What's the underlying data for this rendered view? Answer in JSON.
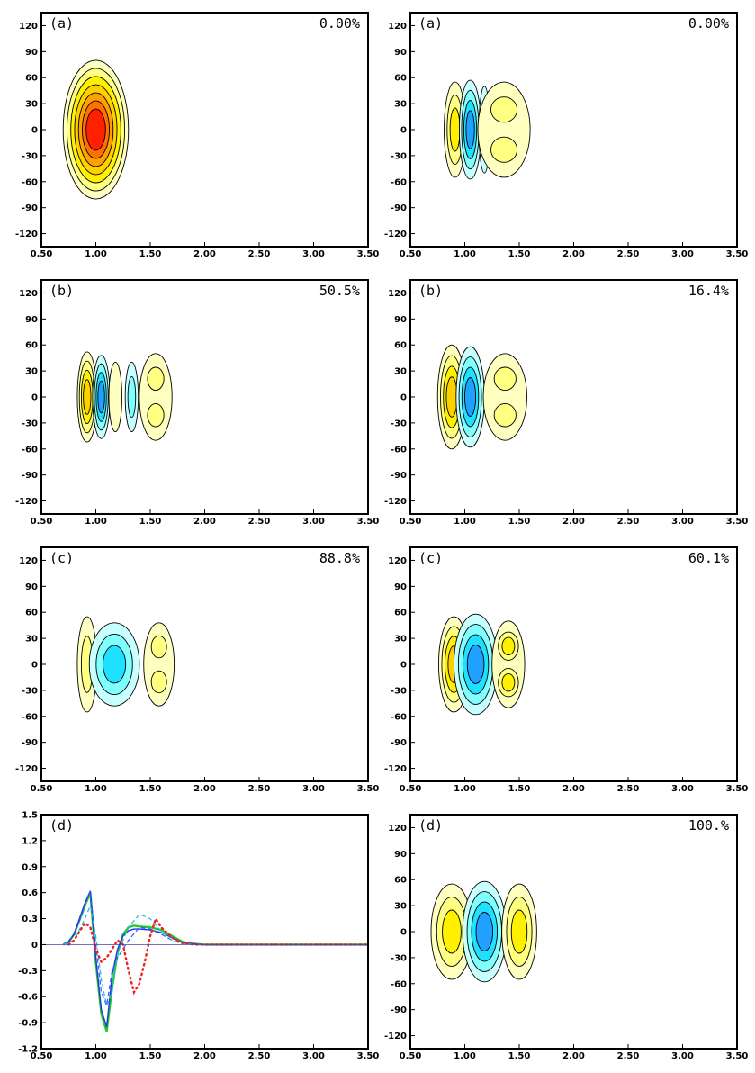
{
  "chart_data": [
    {
      "type": "contour",
      "panel_label": "(a)",
      "percent_label": "0.00%",
      "xlim": [
        0.5,
        3.5
      ],
      "ylim": [
        -135,
        135
      ],
      "x_ticks": [
        "0.50",
        "1.00",
        "1.50",
        "2.00",
        "2.50",
        "3.00",
        "3.50"
      ],
      "y_ticks": [
        "120",
        "90",
        "60",
        "30",
        "0",
        "-30",
        "-60",
        "-90",
        "-120"
      ],
      "lobes": [
        {
          "x": 1.0,
          "y": 0,
          "rx": 0.3,
          "ry": 80,
          "sign": 1,
          "levels": 7
        }
      ]
    },
    {
      "type": "contour",
      "panel_label": "(a)",
      "percent_label": "0.00%",
      "xlim": [
        0.5,
        3.5
      ],
      "ylim": [
        -135,
        135
      ],
      "x_ticks": [
        "0.50",
        "1.00",
        "1.50",
        "2.00",
        "2.50",
        "3.00",
        "3.50"
      ],
      "y_ticks": [
        "120",
        "90",
        "60",
        "30",
        "0",
        "-30",
        "-60",
        "-90",
        "-120"
      ],
      "lobes": [
        {
          "x": 0.91,
          "y": 0,
          "rx": 0.1,
          "ry": 55,
          "sign": 1,
          "levels": 3
        },
        {
          "x": 1.05,
          "y": 0,
          "rx": 0.1,
          "ry": 57,
          "sign": -1,
          "levels": 4
        },
        {
          "x": 1.18,
          "y": 0,
          "rx": 0.05,
          "ry": 50,
          "sign": -1,
          "levels": 1
        },
        {
          "x": 1.36,
          "y": 0,
          "rx": 0.24,
          "ry": 55,
          "sign": 1,
          "levels": 2,
          "split": true
        }
      ]
    },
    {
      "type": "contour",
      "panel_label": "(b)",
      "percent_label": "50.5%",
      "xlim": [
        0.5,
        3.5
      ],
      "ylim": [
        -135,
        135
      ],
      "x_ticks": [
        "0.50",
        "1.00",
        "1.50",
        "2.00",
        "2.50",
        "3.00",
        "3.50"
      ],
      "y_ticks": [
        "120",
        "90",
        "60",
        "30",
        "0",
        "-30",
        "-60",
        "-90",
        "-120"
      ],
      "lobes": [
        {
          "x": 0.92,
          "y": 0,
          "rx": 0.09,
          "ry": 52,
          "sign": 1,
          "levels": 4
        },
        {
          "x": 1.05,
          "y": 0,
          "rx": 0.08,
          "ry": 48,
          "sign": -1,
          "levels": 4
        },
        {
          "x": 1.18,
          "y": 0,
          "rx": 0.06,
          "ry": 40,
          "sign": 1,
          "levels": 1
        },
        {
          "x": 1.33,
          "y": 0,
          "rx": 0.06,
          "ry": 40,
          "sign": -1,
          "levels": 2
        },
        {
          "x": 1.55,
          "y": 0,
          "rx": 0.15,
          "ry": 50,
          "sign": 1,
          "levels": 2,
          "split": true
        }
      ]
    },
    {
      "type": "contour",
      "panel_label": "(b)",
      "percent_label": "16.4%",
      "xlim": [
        0.5,
        3.5
      ],
      "ylim": [
        -135,
        135
      ],
      "x_ticks": [
        "0.50",
        "1.00",
        "1.50",
        "2.00",
        "2.50",
        "3.00",
        "3.50"
      ],
      "y_ticks": [
        "120",
        "90",
        "60",
        "30",
        "0",
        "-30",
        "-60",
        "-90",
        "-120"
      ],
      "lobes": [
        {
          "x": 0.88,
          "y": 0,
          "rx": 0.13,
          "ry": 60,
          "sign": 1,
          "levels": 4
        },
        {
          "x": 1.05,
          "y": 0,
          "rx": 0.13,
          "ry": 58,
          "sign": -1,
          "levels": 4
        },
        {
          "x": 1.37,
          "y": 0,
          "rx": 0.2,
          "ry": 50,
          "sign": 1,
          "levels": 2,
          "split": true
        }
      ]
    },
    {
      "type": "contour",
      "panel_label": "(c)",
      "percent_label": "88.8%",
      "xlim": [
        0.5,
        3.5
      ],
      "ylim": [
        -135,
        135
      ],
      "x_ticks": [
        "0.50",
        "1.00",
        "1.50",
        "2.00",
        "2.50",
        "3.00",
        "3.50"
      ],
      "y_ticks": [
        "120",
        "90",
        "60",
        "30",
        "0",
        "-30",
        "-60",
        "-90",
        "-120"
      ],
      "lobes": [
        {
          "x": 0.92,
          "y": 0,
          "rx": 0.09,
          "ry": 55,
          "sign": 1,
          "levels": 2
        },
        {
          "x": 1.17,
          "y": 0,
          "rx": 0.23,
          "ry": 48,
          "sign": -1,
          "levels": 3
        },
        {
          "x": 1.58,
          "y": 0,
          "rx": 0.14,
          "ry": 48,
          "sign": 1,
          "levels": 2,
          "split": true
        }
      ]
    },
    {
      "type": "contour",
      "panel_label": "(c)",
      "percent_label": "60.1%",
      "xlim": [
        0.5,
        3.5
      ],
      "ylim": [
        -135,
        135
      ],
      "x_ticks": [
        "0.50",
        "1.00",
        "1.50",
        "2.00",
        "2.50",
        "3.00",
        "3.50"
      ],
      "y_ticks": [
        "120",
        "90",
        "60",
        "30",
        "0",
        "-30",
        "-60",
        "-90",
        "-120"
      ],
      "lobes": [
        {
          "x": 0.9,
          "y": 0,
          "rx": 0.14,
          "ry": 55,
          "sign": 1,
          "levels": 4
        },
        {
          "x": 1.1,
          "y": 0,
          "rx": 0.2,
          "ry": 58,
          "sign": -1,
          "levels": 4
        },
        {
          "x": 1.4,
          "y": 0,
          "rx": 0.15,
          "ry": 50,
          "sign": 1,
          "levels": 3,
          "split": true
        }
      ]
    },
    {
      "type": "line",
      "panel_label": "(d)",
      "xlim": [
        0.5,
        3.5
      ],
      "ylim": [
        -1.2,
        1.5
      ],
      "x_ticks": [
        "0.50",
        "1.00",
        "1.50",
        "2.00",
        "2.50",
        "3.00",
        "3.50"
      ],
      "y_ticks": [
        "1.5",
        "1.2",
        "0.9",
        "0.6",
        "0.3",
        "0",
        "-0.3",
        "-0.6",
        "-0.9",
        "-1.2"
      ],
      "series": [
        {
          "color": "#22cc22",
          "style": "solid",
          "width": 2.4,
          "x": [
            0.7,
            0.75,
            0.8,
            0.85,
            0.9,
            0.95,
            1.0,
            1.05,
            1.1,
            1.15,
            1.2,
            1.25,
            1.3,
            1.35,
            1.4,
            1.5,
            1.6,
            1.7,
            1.8,
            1.9,
            2.0,
            2.5,
            3.0,
            3.5
          ],
          "y": [
            0,
            0.03,
            0.12,
            0.28,
            0.45,
            0.6,
            -0.2,
            -0.8,
            -1.0,
            -0.5,
            -0.1,
            0.12,
            0.2,
            0.22,
            0.21,
            0.2,
            0.17,
            0.1,
            0.03,
            0.01,
            0,
            0,
            0,
            0
          ]
        },
        {
          "color": "#2233ee",
          "style": "solid",
          "width": 1.4,
          "x": [
            0.7,
            0.75,
            0.8,
            0.85,
            0.9,
            0.95,
            1.0,
            1.05,
            1.1,
            1.15,
            1.2,
            1.25,
            1.3,
            1.35,
            1.4,
            1.5,
            1.6,
            1.7,
            1.8,
            1.9,
            2.0,
            2.5,
            3.0,
            3.5
          ],
          "y": [
            0,
            0.03,
            0.12,
            0.3,
            0.48,
            0.62,
            -0.15,
            -0.75,
            -0.95,
            -0.35,
            -0.05,
            0.1,
            0.16,
            0.18,
            0.18,
            0.17,
            0.14,
            0.08,
            0.02,
            0.01,
            0,
            0,
            0,
            0
          ]
        },
        {
          "color": "#3355ff",
          "style": "dashed",
          "width": 1.2,
          "x": [
            0.7,
            0.8,
            0.9,
            0.95,
            1.0,
            1.05,
            1.1,
            1.15,
            1.2,
            1.3,
            1.4,
            1.5,
            1.6,
            1.7,
            1.8,
            2.0,
            2.5,
            3.5
          ],
          "y": [
            0,
            0.1,
            0.45,
            0.62,
            0.0,
            -0.55,
            -0.7,
            -0.3,
            -0.15,
            0.05,
            0.2,
            0.18,
            0.12,
            0.05,
            0.01,
            0,
            0,
            0
          ]
        },
        {
          "color": "#22bbdd",
          "style": "dashed",
          "width": 1.2,
          "x": [
            0.7,
            0.8,
            0.9,
            0.95,
            1.0,
            1.05,
            1.1,
            1.15,
            1.2,
            1.3,
            1.4,
            1.5,
            1.6,
            1.7,
            1.8,
            2.0,
            2.5,
            3.5
          ],
          "y": [
            0,
            0.05,
            0.3,
            0.45,
            0.1,
            -0.4,
            -0.7,
            -0.55,
            -0.1,
            0.2,
            0.35,
            0.3,
            0.15,
            0.05,
            0.01,
            0,
            0,
            0
          ]
        },
        {
          "color": "#ee2222",
          "style": "dotted",
          "width": 2.4,
          "x": [
            0.75,
            0.8,
            0.85,
            0.9,
            0.95,
            1.0,
            1.05,
            1.1,
            1.15,
            1.2,
            1.25,
            1.3,
            1.35,
            1.4,
            1.45,
            1.5,
            1.55,
            1.6,
            1.7,
            1.8,
            1.9,
            2.0,
            2.5,
            3.0,
            3.5
          ],
          "y": [
            0,
            0.05,
            0.15,
            0.25,
            0.2,
            -0.05,
            -0.2,
            -0.15,
            -0.05,
            0.05,
            0.0,
            -0.3,
            -0.55,
            -0.45,
            -0.2,
            0.1,
            0.3,
            0.2,
            0.08,
            0.02,
            0,
            0,
            0,
            0,
            0
          ]
        },
        {
          "color": "#4444aa",
          "style": "solid",
          "width": 0.8,
          "x": [
            0.5,
            3.5
          ],
          "y": [
            0,
            0
          ]
        }
      ]
    },
    {
      "type": "contour",
      "panel_label": "(d)",
      "percent_label": "100.%",
      "xlim": [
        0.5,
        3.5
      ],
      "ylim": [
        -135,
        135
      ],
      "x_ticks": [
        "0.50",
        "1.00",
        "1.50",
        "2.00",
        "2.50",
        "3.00",
        "3.50"
      ],
      "y_ticks": [
        "120",
        "90",
        "60",
        "30",
        "0",
        "-30",
        "-60",
        "-90",
        "-120"
      ],
      "lobes": [
        {
          "x": 0.88,
          "y": 0,
          "rx": 0.19,
          "ry": 55,
          "sign": 1,
          "levels": 3
        },
        {
          "x": 1.18,
          "y": 0,
          "rx": 0.2,
          "ry": 58,
          "sign": -1,
          "levels": 4
        },
        {
          "x": 1.5,
          "y": 0,
          "rx": 0.16,
          "ry": 55,
          "sign": 1,
          "levels": 3
        }
      ]
    }
  ]
}
